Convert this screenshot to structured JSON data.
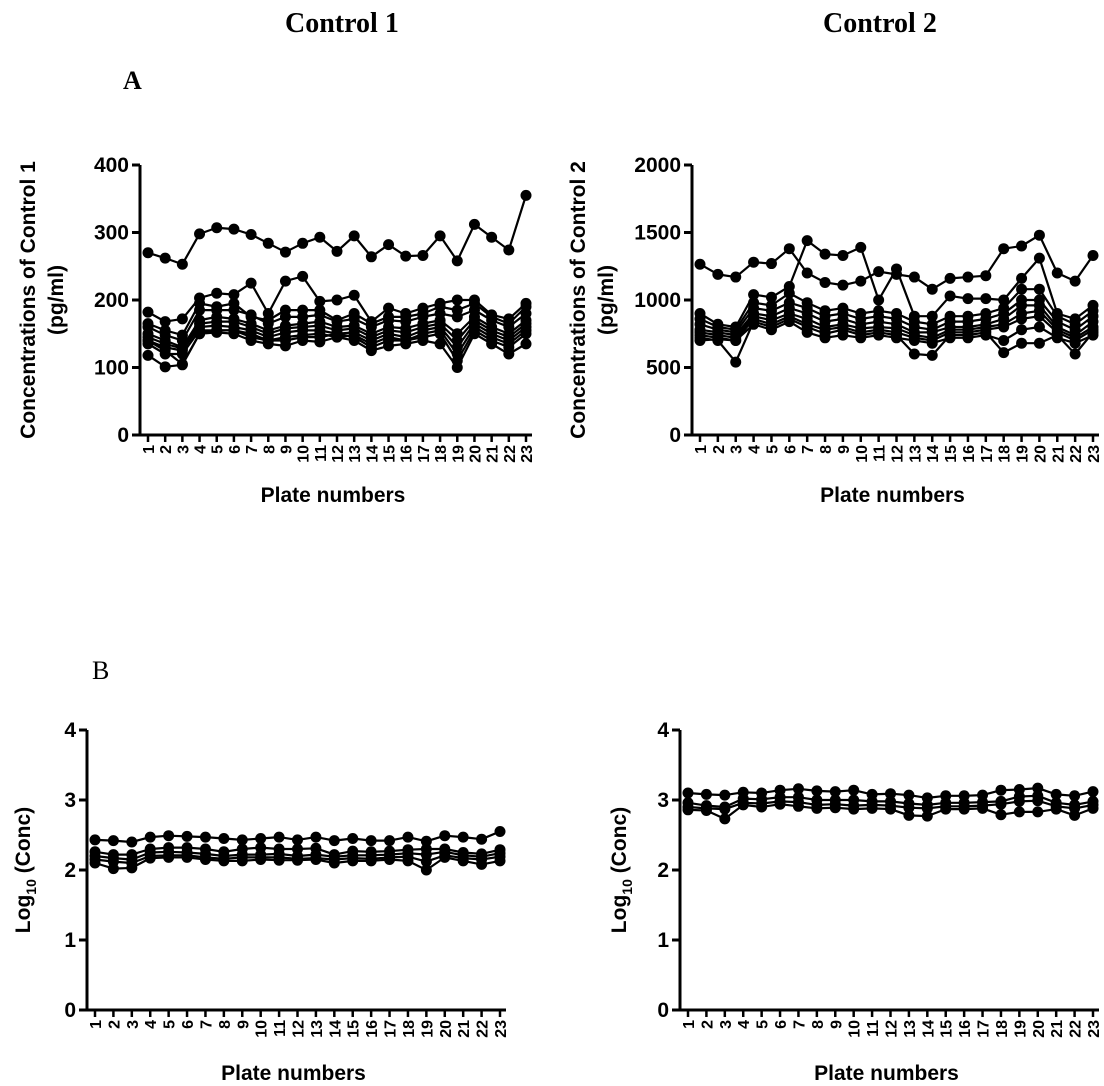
{
  "titles": {
    "control1": "Control 1",
    "control2": "Control 2"
  },
  "panel_labels": {
    "a": "A",
    "b": "B"
  },
  "chart_data": [
    {
      "type": "line",
      "panel": "A",
      "xlabel": "Plate numbers",
      "ylabel": "Concentrations of Control 1 (pg/ml)",
      "ylabel_lines": [
        "Concentrations of Control 1",
        "(pg/ml)"
      ],
      "ylim": [
        0,
        400
      ],
      "yticks": [
        "0",
        "100",
        "200",
        "300",
        "400"
      ],
      "x": [
        1,
        2,
        3,
        4,
        5,
        6,
        7,
        8,
        9,
        10,
        11,
        12,
        13,
        14,
        15,
        16,
        17,
        18,
        19,
        20,
        21,
        22,
        23
      ],
      "series": [
        {
          "values": [
            270,
            262,
            253,
            298,
            307,
            305,
            297,
            284,
            271,
            284,
            293,
            272,
            295,
            264,
            282,
            265,
            266,
            295,
            258,
            312,
            293,
            274,
            355
          ]
        },
        {
          "values": [
            182,
            168,
            172,
            203,
            210,
            208,
            225,
            180,
            228,
            235,
            198,
            200,
            207,
            168,
            188,
            180,
            188,
            195,
            200,
            200,
            178,
            172,
            195
          ]
        },
        {
          "values": [
            165,
            155,
            148,
            195,
            190,
            195,
            175,
            170,
            185,
            185,
            185,
            170,
            180,
            165,
            175,
            175,
            180,
            190,
            185,
            195,
            175,
            165,
            190
          ]
        },
        {
          "values": [
            160,
            148,
            140,
            185,
            185,
            185,
            178,
            165,
            175,
            175,
            178,
            168,
            172,
            160,
            170,
            168,
            175,
            180,
            175,
            185,
            170,
            160,
            180
          ]
        },
        {
          "values": [
            150,
            140,
            130,
            170,
            175,
            172,
            165,
            155,
            162,
            165,
            168,
            160,
            162,
            150,
            160,
            158,
            165,
            170,
            150,
            175,
            160,
            150,
            170
          ]
        },
        {
          "values": [
            145,
            135,
            128,
            165,
            168,
            168,
            160,
            150,
            158,
            160,
            162,
            155,
            158,
            145,
            155,
            152,
            160,
            165,
            140,
            170,
            155,
            145,
            165
          ]
        },
        {
          "values": [
            140,
            130,
            125,
            160,
            162,
            160,
            155,
            145,
            152,
            155,
            155,
            150,
            152,
            140,
            150,
            145,
            155,
            160,
            130,
            165,
            150,
            140,
            160
          ]
        },
        {
          "values": [
            135,
            120,
            120,
            155,
            155,
            155,
            150,
            140,
            145,
            148,
            150,
            145,
            148,
            135,
            145,
            140,
            150,
            155,
            120,
            160,
            145,
            135,
            155
          ]
        },
        {
          "values": [
            140,
            125,
            105,
            150,
            155,
            155,
            145,
            140,
            140,
            145,
            145,
            150,
            145,
            130,
            140,
            140,
            145,
            150,
            110,
            155,
            140,
            130,
            150
          ]
        },
        {
          "values": [
            118,
            101,
            104,
            150,
            152,
            150,
            140,
            135,
            132,
            140,
            138,
            145,
            140,
            125,
            132,
            135,
            140,
            135,
            100,
            150,
            135,
            120,
            135
          ]
        }
      ]
    },
    {
      "type": "line",
      "panel": "A",
      "xlabel": "Plate numbers",
      "ylabel": "Concentrations of Control 2 (pg/ml)",
      "ylabel_lines": [
        "Concentrations of Control 2",
        "(pg/ml)"
      ],
      "ylim": [
        0,
        2000
      ],
      "yticks": [
        "0",
        "500",
        "1000",
        "1500",
        "2000"
      ],
      "x": [
        1,
        2,
        3,
        4,
        5,
        6,
        7,
        8,
        9,
        10,
        11,
        12,
        13,
        14,
        15,
        16,
        17,
        18,
        19,
        20,
        21,
        22,
        23
      ],
      "series": [
        {
          "values": [
            1265,
            1190,
            1170,
            1280,
            1270,
            1380,
            1200,
            1130,
            1110,
            1140,
            1210,
            1190,
            1170,
            1080,
            1160,
            1170,
            1180,
            1380,
            1400,
            1480,
            1200,
            1140,
            1330
          ]
        },
        {
          "values": [
            900,
            820,
            800,
            1040,
            1020,
            1100,
            1440,
            1340,
            1330,
            1390,
            1000,
            1230,
            880,
            880,
            1030,
            1010,
            1010,
            1000,
            1160,
            1310,
            900,
            860,
            960
          ]
        },
        {
          "values": [
            860,
            800,
            780,
            980,
            960,
            1050,
            980,
            920,
            940,
            900,
            920,
            900,
            840,
            820,
            880,
            880,
            900,
            940,
            1080,
            1080,
            880,
            820,
            920
          ]
        },
        {
          "values": [
            820,
            780,
            760,
            940,
            920,
            980,
            940,
            880,
            900,
            860,
            880,
            860,
            800,
            780,
            840,
            840,
            860,
            900,
            1000,
            1000,
            840,
            780,
            880
          ]
        },
        {
          "values": [
            780,
            760,
            740,
            900,
            880,
            940,
            900,
            840,
            860,
            820,
            840,
            820,
            760,
            760,
            800,
            800,
            820,
            860,
            960,
            960,
            800,
            740,
            840
          ]
        },
        {
          "values": [
            760,
            740,
            720,
            880,
            850,
            900,
            860,
            800,
            820,
            790,
            800,
            790,
            740,
            720,
            780,
            780,
            800,
            820,
            900,
            920,
            780,
            720,
            800
          ]
        },
        {
          "values": [
            740,
            720,
            700,
            860,
            820,
            880,
            820,
            780,
            800,
            760,
            780,
            760,
            720,
            700,
            760,
            760,
            780,
            800,
            860,
            880,
            760,
            700,
            780
          ]
        },
        {
          "values": [
            720,
            700,
            540,
            840,
            800,
            860,
            800,
            750,
            780,
            740,
            760,
            740,
            600,
            590,
            740,
            740,
            760,
            610,
            680,
            680,
            740,
            600,
            760
          ]
        },
        {
          "values": [
            700,
            710,
            700,
            820,
            780,
            840,
            760,
            720,
            740,
            720,
            740,
            720,
            700,
            680,
            720,
            720,
            740,
            700,
            780,
            800,
            720,
            680,
            740
          ]
        }
      ]
    },
    {
      "type": "line",
      "panel": "B",
      "xlabel": "Plate numbers",
      "ylabel": "Log10 (Conc)",
      "ylabel_parts": [
        "Log",
        "10",
        " (Conc)"
      ],
      "ylim": [
        0,
        4
      ],
      "yticks": [
        "0",
        "1",
        "2",
        "3",
        "4"
      ],
      "x": [
        1,
        2,
        3,
        4,
        5,
        6,
        7,
        8,
        9,
        10,
        11,
        12,
        13,
        14,
        15,
        16,
        17,
        18,
        19,
        20,
        21,
        22,
        23
      ],
      "series": [
        {
          "values": [
            2.43,
            2.42,
            2.4,
            2.47,
            2.49,
            2.48,
            2.47,
            2.45,
            2.43,
            2.45,
            2.47,
            2.43,
            2.47,
            2.42,
            2.45,
            2.42,
            2.42,
            2.47,
            2.41,
            2.49,
            2.47,
            2.44,
            2.55
          ]
        },
        {
          "values": [
            2.26,
            2.22,
            2.22,
            2.3,
            2.32,
            2.32,
            2.3,
            2.26,
            2.3,
            2.32,
            2.3,
            2.3,
            2.31,
            2.22,
            2.27,
            2.26,
            2.27,
            2.29,
            2.3,
            2.3,
            2.25,
            2.23,
            2.29
          ]
        },
        {
          "values": [
            2.2,
            2.17,
            2.15,
            2.25,
            2.26,
            2.25,
            2.23,
            2.2,
            2.22,
            2.22,
            2.23,
            2.2,
            2.22,
            2.19,
            2.21,
            2.21,
            2.22,
            2.24,
            2.22,
            2.26,
            2.21,
            2.19,
            2.24
          ]
        },
        {
          "values": [
            2.15,
            2.12,
            2.1,
            2.2,
            2.21,
            2.21,
            2.18,
            2.16,
            2.18,
            2.18,
            2.18,
            2.16,
            2.17,
            2.15,
            2.17,
            2.16,
            2.18,
            2.19,
            2.12,
            2.21,
            2.17,
            2.15,
            2.19
          ]
        },
        {
          "values": [
            2.1,
            2.02,
            2.03,
            2.17,
            2.18,
            2.18,
            2.15,
            2.13,
            2.13,
            2.15,
            2.14,
            2.14,
            2.15,
            2.1,
            2.13,
            2.13,
            2.15,
            2.13,
            2.0,
            2.18,
            2.13,
            2.08,
            2.13
          ]
        }
      ]
    },
    {
      "type": "line",
      "panel": "B",
      "xlabel": "Plate numbers",
      "ylabel": "Log10 (Conc)",
      "ylabel_parts": [
        "Log",
        "10",
        " (Conc)"
      ],
      "ylim": [
        0,
        4
      ],
      "yticks": [
        "0",
        "1",
        "2",
        "3",
        "4"
      ],
      "x": [
        1,
        2,
        3,
        4,
        5,
        6,
        7,
        8,
        9,
        10,
        11,
        12,
        13,
        14,
        15,
        16,
        17,
        18,
        19,
        20,
        21,
        22,
        23
      ],
      "series": [
        {
          "values": [
            3.1,
            3.08,
            3.07,
            3.11,
            3.1,
            3.14,
            3.16,
            3.13,
            3.12,
            3.14,
            3.08,
            3.09,
            3.07,
            3.03,
            3.06,
            3.06,
            3.07,
            3.14,
            3.15,
            3.17,
            3.08,
            3.06,
            3.12
          ]
        },
        {
          "values": [
            2.96,
            2.92,
            2.9,
            3.02,
            3.01,
            3.04,
            3.04,
            3.0,
            3.0,
            3.0,
            2.98,
            2.98,
            2.95,
            2.93,
            2.96,
            2.96,
            2.97,
            2.98,
            3.05,
            3.06,
            2.96,
            2.93,
            2.98
          ]
        },
        {
          "values": [
            2.9,
            2.88,
            2.87,
            2.96,
            2.95,
            2.98,
            2.97,
            2.93,
            2.94,
            2.92,
            2.93,
            2.92,
            2.89,
            2.88,
            2.91,
            2.91,
            2.92,
            2.94,
            2.98,
            2.99,
            2.91,
            2.88,
            2.93
          ]
        },
        {
          "values": [
            2.86,
            2.85,
            2.73,
            2.93,
            2.9,
            2.94,
            2.91,
            2.88,
            2.89,
            2.87,
            2.88,
            2.87,
            2.78,
            2.77,
            2.87,
            2.87,
            2.88,
            2.79,
            2.83,
            2.83,
            2.87,
            2.78,
            2.88
          ]
        }
      ]
    }
  ]
}
